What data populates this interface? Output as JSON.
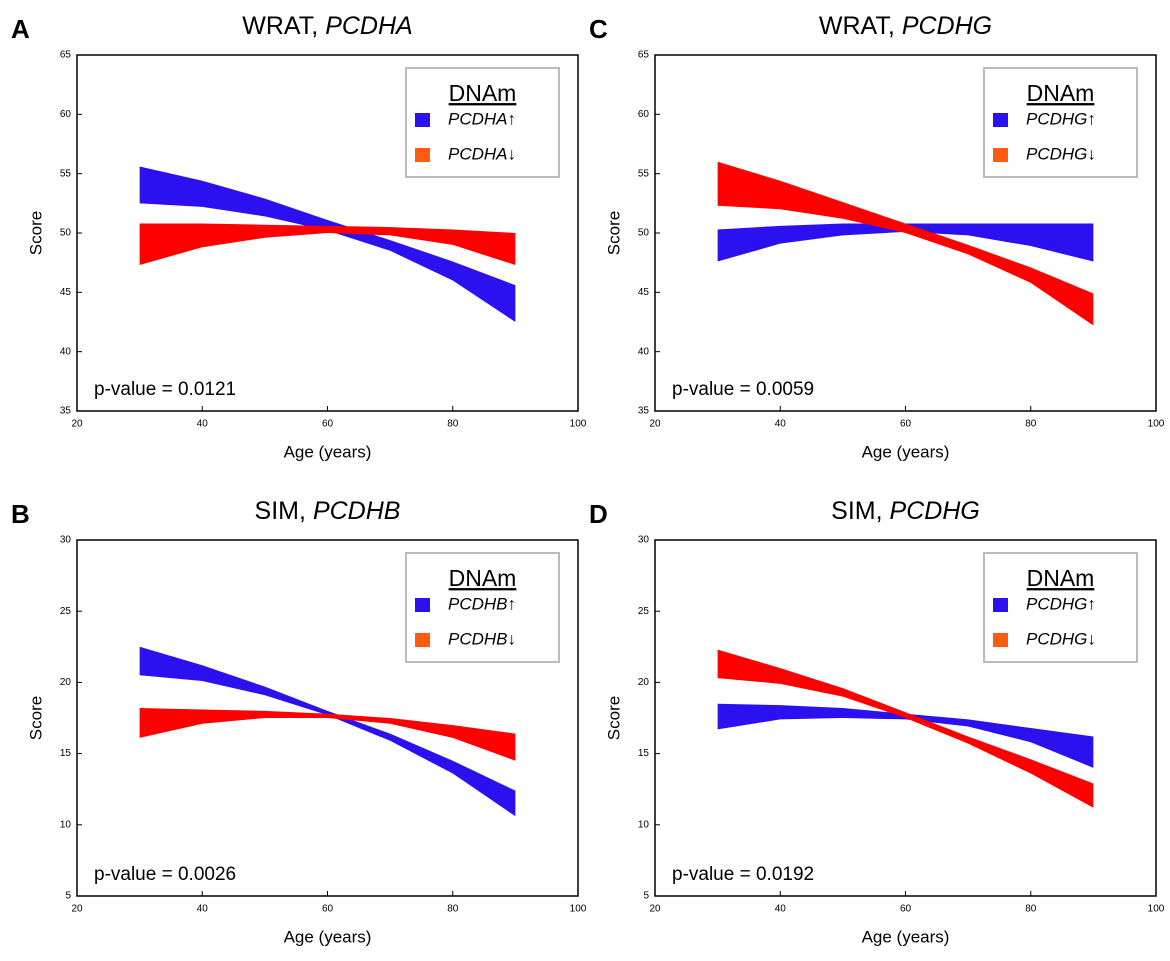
{
  "chart_data": [
    {
      "type": "band",
      "panel": "A",
      "title": {
        "test": "WRAT,",
        "gene": "PCDHA"
      },
      "xlabel": "Age (years)",
      "ylabel": "Score",
      "annotation": "p-value = 0.0121",
      "legend_title": "DNAm",
      "legend": "upper-right",
      "xlim": [
        20,
        100
      ],
      "xticks": [
        20,
        40,
        60,
        80,
        100
      ],
      "ylim": [
        35,
        65
      ],
      "yticks": [
        35,
        40,
        45,
        50,
        55,
        60,
        65
      ],
      "x": [
        30,
        40,
        50,
        60,
        70,
        80,
        90
      ],
      "series": [
        {
          "name": "PCDHA↑",
          "color": "#2b10f0",
          "legend_color": "#2b10f0",
          "upper": [
            55.6,
            54.4,
            52.9,
            51.1,
            49.4,
            47.6,
            45.6
          ],
          "lower": [
            52.5,
            52.2,
            51.4,
            50.2,
            48.5,
            46.0,
            42.5
          ]
        },
        {
          "name": "PCDHA↓",
          "color": "#ff0000",
          "legend_color": "#ff5a10",
          "upper": [
            50.8,
            50.8,
            50.7,
            50.6,
            50.5,
            50.3,
            50.0
          ],
          "lower": [
            47.3,
            48.8,
            49.6,
            50.0,
            49.8,
            49.0,
            47.3
          ]
        }
      ]
    },
    {
      "type": "band",
      "panel": "C",
      "title": {
        "test": "WRAT,",
        "gene": "PCDHG"
      },
      "xlabel": "Age (years)",
      "ylabel": "Score",
      "annotation": "p-value = 0.0059",
      "legend_title": "DNAm",
      "legend": "upper-right",
      "xlim": [
        20,
        100
      ],
      "xticks": [
        20,
        40,
        60,
        80,
        100
      ],
      "ylim": [
        35,
        65
      ],
      "yticks": [
        35,
        40,
        45,
        50,
        55,
        60,
        65
      ],
      "x": [
        30,
        40,
        50,
        60,
        70,
        80,
        90
      ],
      "series": [
        {
          "name": "PCDHG↑",
          "color": "#2b10f0",
          "legend_color": "#2b10f0",
          "upper": [
            50.3,
            50.6,
            50.8,
            50.8,
            50.8,
            50.8,
            50.8
          ],
          "lower": [
            47.6,
            49.1,
            49.8,
            50.1,
            49.8,
            48.9,
            47.6
          ]
        },
        {
          "name": "PCDHG↓",
          "color": "#ff0000",
          "legend_color": "#ff5a10",
          "upper": [
            56.0,
            54.4,
            52.6,
            50.8,
            49.0,
            47.1,
            44.9
          ],
          "lower": [
            52.3,
            52.0,
            51.2,
            50.0,
            48.2,
            45.8,
            42.2
          ]
        }
      ]
    },
    {
      "type": "band",
      "panel": "B",
      "title": {
        "test": "SIM,",
        "gene": "PCDHB"
      },
      "xlabel": "Age (years)",
      "ylabel": "Score",
      "annotation": "p-value = 0.0026",
      "legend_title": "DNAm",
      "legend": "upper-right",
      "xlim": [
        20,
        100
      ],
      "xticks": [
        20,
        40,
        60,
        80,
        100
      ],
      "ylim": [
        5,
        30
      ],
      "yticks": [
        5,
        10,
        15,
        20,
        25,
        30
      ],
      "x": [
        30,
        40,
        50,
        60,
        70,
        80,
        90
      ],
      "series": [
        {
          "name": "PCDHB↑",
          "color": "#2b10f0",
          "legend_color": "#2b10f0",
          "upper": [
            22.5,
            21.2,
            19.7,
            18.0,
            16.4,
            14.5,
            12.4
          ],
          "lower": [
            20.5,
            20.1,
            19.1,
            17.7,
            15.9,
            13.6,
            10.6
          ]
        },
        {
          "name": "PCDHB↓",
          "color": "#ff0000",
          "legend_color": "#ff5a10",
          "upper": [
            18.2,
            18.1,
            18.0,
            17.8,
            17.5,
            17.0,
            16.4
          ],
          "lower": [
            16.1,
            17.1,
            17.5,
            17.5,
            17.1,
            16.1,
            14.5
          ]
        }
      ]
    },
    {
      "type": "band",
      "panel": "D",
      "title": {
        "test": "SIM,",
        "gene": "PCDHG"
      },
      "xlabel": "Age (years)",
      "ylabel": "Score",
      "annotation": "p-value = 0.0192",
      "legend_title": "DNAm",
      "legend": "upper-right",
      "xlim": [
        20,
        100
      ],
      "xticks": [
        20,
        40,
        60,
        80,
        100
      ],
      "ylim": [
        5,
        30
      ],
      "yticks": [
        5,
        10,
        15,
        20,
        25,
        30
      ],
      "x": [
        30,
        40,
        50,
        60,
        70,
        80,
        90
      ],
      "series": [
        {
          "name": "PCDHG↑",
          "color": "#2b10f0",
          "legend_color": "#2b10f0",
          "upper": [
            18.5,
            18.4,
            18.2,
            17.8,
            17.4,
            16.8,
            16.2
          ],
          "lower": [
            16.7,
            17.4,
            17.5,
            17.4,
            16.9,
            15.8,
            14.0
          ]
        },
        {
          "name": "PCDHG↓",
          "color": "#ff0000",
          "legend_color": "#ff5a10",
          "upper": [
            22.3,
            21.0,
            19.6,
            17.9,
            16.2,
            14.6,
            12.9
          ],
          "lower": [
            20.3,
            19.9,
            19.0,
            17.5,
            15.7,
            13.6,
            11.2
          ]
        }
      ]
    }
  ]
}
